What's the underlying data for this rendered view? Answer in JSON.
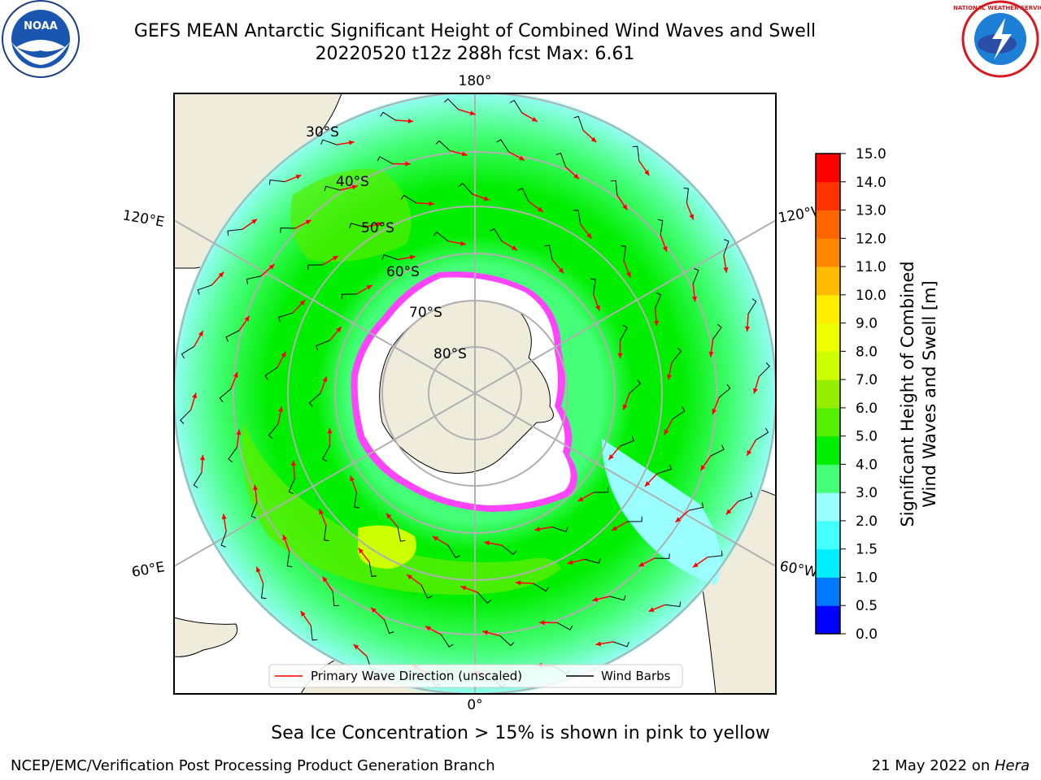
{
  "title": {
    "line1": "GEFS MEAN Antarctic Significant Height of Combined Wind Waves and Swell",
    "line2": "20220520 t12z 288h fcst   Max: 6.61"
  },
  "map": {
    "projection": "south-polar-stereographic",
    "longitude_labels": [
      "180°",
      "120°E",
      "120°W",
      "60°E",
      "60°W",
      "0°"
    ],
    "latitude_labels": [
      "30°S",
      "40°S",
      "50°S",
      "60°S",
      "70°S",
      "80°S"
    ],
    "land_color": "#efecdc",
    "sea_ice_color": "#ff33ff"
  },
  "legend": {
    "wave_label": "Primary Wave Direction (unscaled)",
    "barb_label": "Wind Barbs",
    "wave_color": "#ff0000",
    "barb_color": "#000000"
  },
  "colorbar": {
    "title_line1": "Significant Height of Combined",
    "title_line2": "Wind Waves and Swell [m]",
    "ticks": [
      "0.0",
      "0.5",
      "1.0",
      "1.5",
      "2.0",
      "3.0",
      "4.0",
      "5.0",
      "6.0",
      "7.0",
      "8.0",
      "9.0",
      "10.0",
      "11.0",
      "12.0",
      "13.0",
      "14.0",
      "15.0"
    ],
    "colors": [
      "#0000ff",
      "#0077ff",
      "#00eeff",
      "#44ffff",
      "#99ffff",
      "#44ff77",
      "#00ee00",
      "#55ee00",
      "#99ee00",
      "#ccff00",
      "#eeff00",
      "#ffee00",
      "#ffbb00",
      "#ff8800",
      "#ff6600",
      "#ff3300",
      "#ff0000"
    ]
  },
  "chart_data": {
    "type": "heatmap",
    "variable": "Significant Height of Combined Wind Waves and Swell",
    "units": "m",
    "max_value": 6.61,
    "color_levels": [
      0.0,
      0.5,
      1.0,
      1.5,
      2.0,
      3.0,
      4.0,
      5.0,
      6.0,
      7.0,
      8.0,
      9.0,
      10.0,
      11.0,
      12.0,
      13.0,
      14.0,
      15.0
    ],
    "latitude_circles": [
      -30,
      -40,
      -50,
      -60,
      -70,
      -80
    ],
    "meridians": [
      0,
      60,
      120,
      180,
      -120,
      -60
    ]
  },
  "subnote": "Sea Ice Concentration > 15% is shown in pink to yellow",
  "footer": {
    "left": "NCEP/EMC/Verification Post Processing Product Generation Branch",
    "right_prefix": "21 May 2022 on ",
    "right_host": "Hera"
  },
  "logos": {
    "noaa_text": "NOAA",
    "nws_text": "NATIONAL WEATHER SERVICE"
  }
}
